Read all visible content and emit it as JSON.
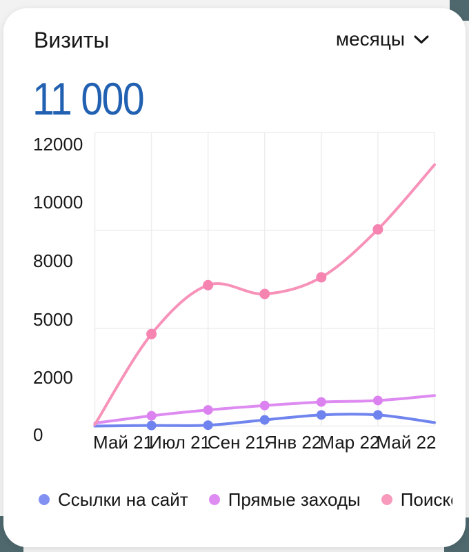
{
  "widget": {
    "title": "Визиты",
    "period_selector": {
      "label": "месяцы",
      "icon": "chevron-down-icon"
    },
    "headline_value": "11 000",
    "headline_color": "#2261b2",
    "background_corner_color": "#4e686d"
  },
  "chart_data": {
    "type": "line",
    "title": "Визиты",
    "x_tick_labels": [
      "Май 21",
      "Июл 21",
      "Сен 21",
      "Янв 22",
      "Мар 22",
      "Май 22"
    ],
    "y_tick_labels": [
      "12000",
      "10000",
      "8000",
      "5000",
      "2000",
      "0"
    ],
    "ylim": [
      0,
      12300
    ],
    "grid": true,
    "legend_position": "bottom",
    "series": [
      {
        "name": "Ссылки на сайт",
        "color": "#7084ee",
        "dot_color": "#6f83ee",
        "values": [
          0,
          20,
          30,
          210,
          380,
          380,
          120
        ]
      },
      {
        "name": "Прямые заходы",
        "color": "#de8bf1",
        "dot_color": "#dc82f0",
        "values": [
          100,
          350,
          550,
          700,
          820,
          870,
          1040
        ]
      },
      {
        "name": "Поисков",
        "color": "#f792b9",
        "dot_color": "#f584b1",
        "values": [
          50,
          3700,
          6200,
          5750,
          6600,
          8700,
          10900
        ]
      }
    ]
  },
  "legend": {
    "items": [
      {
        "label": "Ссылки на сайт",
        "color": "#8290f2"
      },
      {
        "label": "Прямые заходы",
        "color": "#df8cf2"
      },
      {
        "label": "Поисков",
        "color": "#f79abc"
      }
    ]
  }
}
